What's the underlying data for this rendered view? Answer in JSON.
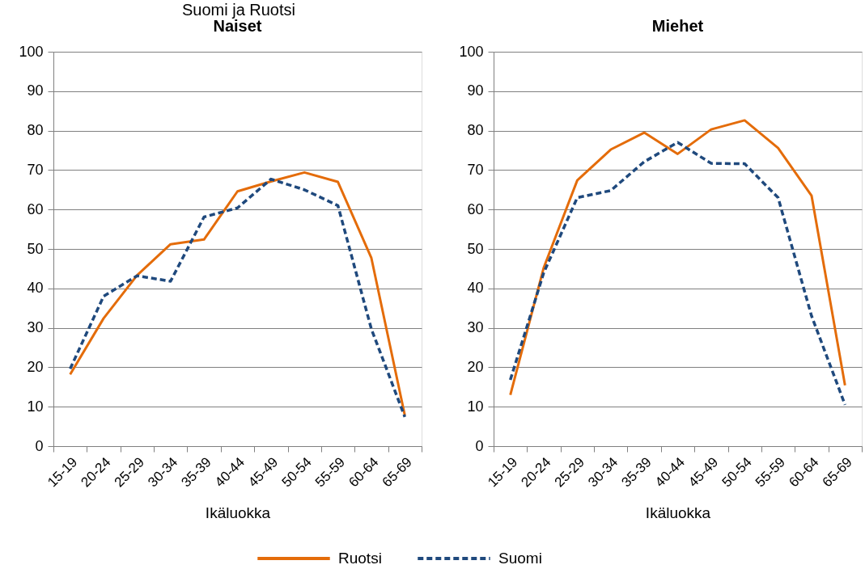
{
  "chart_data": [
    {
      "type": "line",
      "title": "Naiset",
      "annotations": [
        "Suomi ja Ruotsi"
      ],
      "xlabel": "Ikäluokka",
      "categories": [
        "15-19",
        "20-24",
        "25-29",
        "30-34",
        "35-39",
        "40-44",
        "45-49",
        "50-54",
        "55-59",
        "60-64",
        "65-69"
      ],
      "series": [
        {
          "name": "Ruotsi",
          "color": "#e46c0a",
          "line_style": "solid",
          "values": [
            18.2,
            32.4,
            43.3,
            51.2,
            52.4,
            64.6,
            67.1,
            69.4,
            67.0,
            47.7,
            7.8
          ]
        },
        {
          "name": "Suomi",
          "color": "#1f497d",
          "line_style": "dashed",
          "values": [
            19.6,
            38.0,
            43.2,
            41.8,
            58.1,
            60.4,
            67.7,
            65.0,
            61.0,
            29.7,
            7.4
          ]
        }
      ],
      "ylim": [
        0,
        100
      ],
      "yticks": [
        0,
        10,
        20,
        30,
        40,
        50,
        60,
        70,
        80,
        90,
        100
      ],
      "grid": "y",
      "legend": "bottom"
    },
    {
      "type": "line",
      "title": "Miehet",
      "xlabel": "Ikäluokka",
      "categories": [
        "15-19",
        "20-24",
        "25-29",
        "30-34",
        "35-39",
        "40-44",
        "45-49",
        "50-54",
        "55-59",
        "60-64",
        "65-69"
      ],
      "series": [
        {
          "name": "Ruotsi",
          "color": "#e46c0a",
          "line_style": "solid",
          "values": [
            13.0,
            45.3,
            67.4,
            75.2,
            79.5,
            74.1,
            80.3,
            82.6,
            75.6,
            63.5,
            15.4
          ]
        },
        {
          "name": "Suomi",
          "color": "#1f497d",
          "line_style": "dashed",
          "values": [
            16.8,
            44.0,
            63.0,
            64.8,
            72.1,
            77.0,
            71.7,
            71.6,
            63.0,
            33.0,
            10.5
          ]
        }
      ],
      "ylim": [
        0,
        100
      ],
      "yticks": [
        0,
        10,
        20,
        30,
        40,
        50,
        60,
        70,
        80,
        90,
        100
      ],
      "grid": "y",
      "legend": "bottom"
    }
  ]
}
